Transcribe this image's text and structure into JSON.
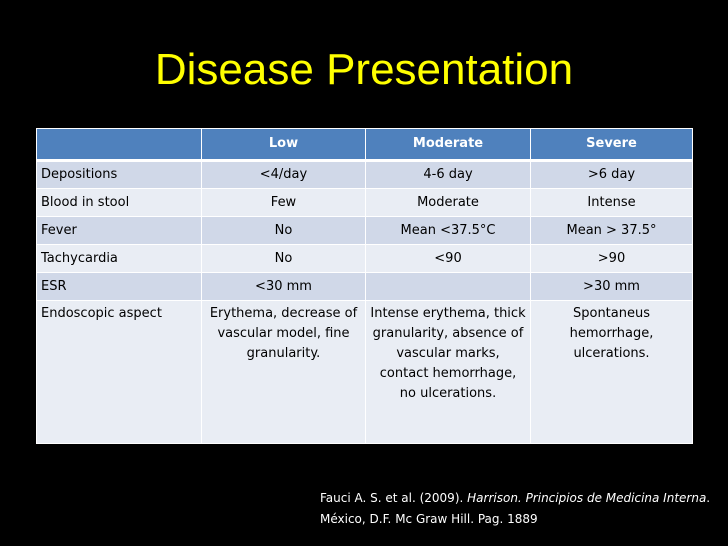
{
  "slide": {
    "title": "Disease Presentation"
  },
  "table": {
    "headers": [
      "",
      "Low",
      "Moderate",
      "Severe"
    ],
    "rows": [
      [
        "Depositions",
        "<4/day",
        "4-6 day",
        ">6 day"
      ],
      [
        "Blood in stool",
        "Few",
        "Moderate",
        "Intense"
      ],
      [
        "Fever",
        "No",
        "Mean <37.5°C",
        "Mean > 37.5°"
      ],
      [
        "Tachycardia",
        "No",
        "<90",
        ">90"
      ],
      [
        "ESR",
        "<30 mm",
        "",
        ">30 mm"
      ],
      [
        "Endoscopic aspect",
        "Erythema, decrease of vascular model, fine granularity.",
        "Intense erythema, thick granularity, absence of vascular marks, contact hemorrhage, no ulcerations.",
        "Spontaneus hemorrhage, ulcerations."
      ]
    ]
  },
  "reference": {
    "authors": "Fauci A. S. et al. (2009).",
    "book_title": "Harrison. Principios de Medicina Interna",
    "publisher": ". México, D.F. Mc Graw Hill. Pag. 1889"
  },
  "colors": {
    "background": "#000000",
    "title": "#ffff00",
    "header_fill": "#4f81bd",
    "band_dark": "#d0d8e8",
    "band_light": "#e9edf4"
  }
}
